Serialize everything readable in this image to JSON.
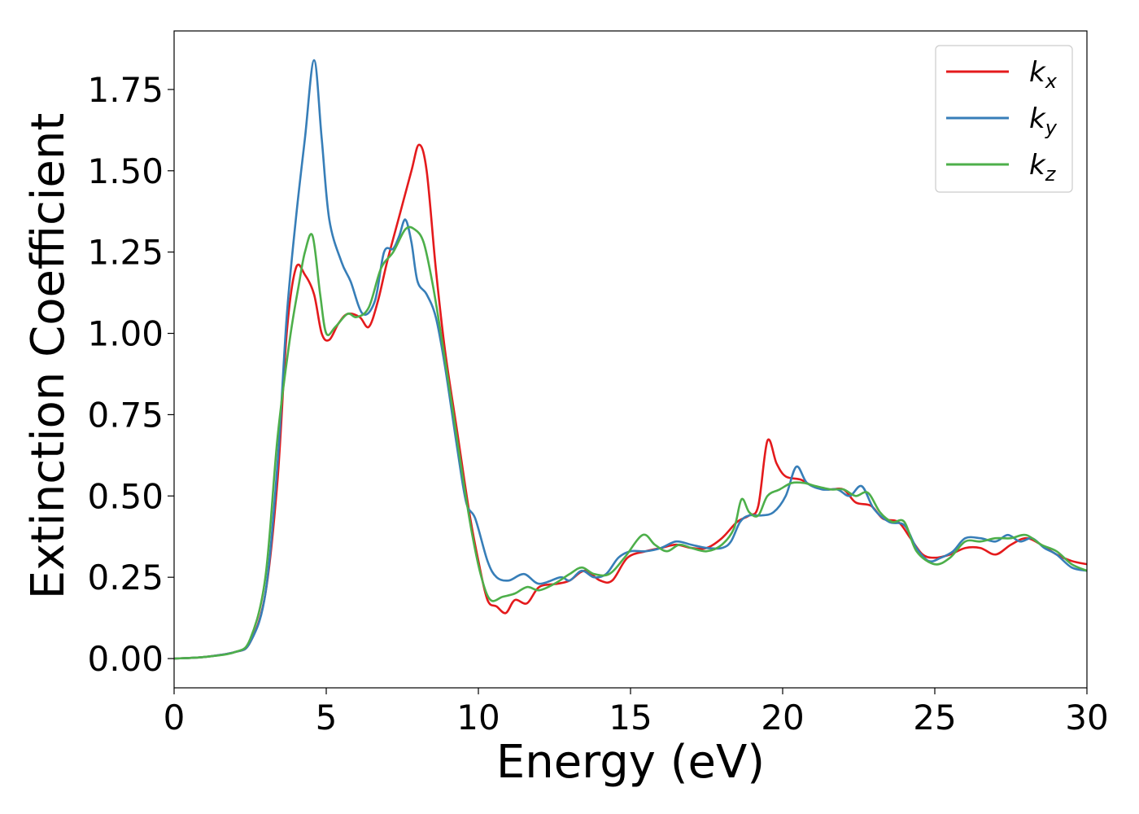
{
  "chart_data": {
    "type": "line",
    "xlabel": "Energy (eV)",
    "ylabel": "Extinction Coefficient",
    "xlim": [
      0,
      30
    ],
    "ylim": [
      -0.09,
      1.93
    ],
    "xticks": [
      0,
      5,
      10,
      15,
      20,
      25,
      30
    ],
    "yticks": [
      0.0,
      0.25,
      0.5,
      0.75,
      1.0,
      1.25,
      1.5,
      1.75
    ],
    "xtick_labels": [
      "0",
      "5",
      "10",
      "15",
      "20",
      "25",
      "30"
    ],
    "ytick_labels": [
      "0.00",
      "0.25",
      "0.50",
      "0.75",
      "1.00",
      "1.25",
      "1.50",
      "1.75"
    ],
    "grid": false,
    "legend_position": "top-right",
    "series": [
      {
        "name": "kx",
        "base": "k",
        "sub": "x",
        "color": "#e41a1c",
        "points": [
          [
            0,
            0
          ],
          [
            1,
            0.005
          ],
          [
            2,
            0.02
          ],
          [
            2.5,
            0.05
          ],
          [
            3,
            0.2
          ],
          [
            3.4,
            0.55
          ],
          [
            3.7,
            1.0
          ],
          [
            4.0,
            1.2
          ],
          [
            4.3,
            1.18
          ],
          [
            4.6,
            1.12
          ],
          [
            4.85,
            1.0
          ],
          [
            5.1,
            0.98
          ],
          [
            5.4,
            1.03
          ],
          [
            5.7,
            1.06
          ],
          [
            6.1,
            1.05
          ],
          [
            6.4,
            1.02
          ],
          [
            6.7,
            1.1
          ],
          [
            7.0,
            1.22
          ],
          [
            7.4,
            1.36
          ],
          [
            7.8,
            1.5
          ],
          [
            8.05,
            1.58
          ],
          [
            8.3,
            1.5
          ],
          [
            8.6,
            1.2
          ],
          [
            8.9,
            0.95
          ],
          [
            9.3,
            0.7
          ],
          [
            9.7,
            0.45
          ],
          [
            10.0,
            0.3
          ],
          [
            10.3,
            0.18
          ],
          [
            10.6,
            0.16
          ],
          [
            10.9,
            0.14
          ],
          [
            11.2,
            0.18
          ],
          [
            11.6,
            0.17
          ],
          [
            12.0,
            0.22
          ],
          [
            12.6,
            0.23
          ],
          [
            13.0,
            0.24
          ],
          [
            13.5,
            0.27
          ],
          [
            14.0,
            0.24
          ],
          [
            14.4,
            0.24
          ],
          [
            14.9,
            0.31
          ],
          [
            15.5,
            0.33
          ],
          [
            16.0,
            0.34
          ],
          [
            16.5,
            0.35
          ],
          [
            17.0,
            0.34
          ],
          [
            17.5,
            0.34
          ],
          [
            18.0,
            0.37
          ],
          [
            18.5,
            0.42
          ],
          [
            18.9,
            0.44
          ],
          [
            19.2,
            0.47
          ],
          [
            19.5,
            0.67
          ],
          [
            19.8,
            0.6
          ],
          [
            20.1,
            0.56
          ],
          [
            20.6,
            0.55
          ],
          [
            21.0,
            0.53
          ],
          [
            21.5,
            0.52
          ],
          [
            22.0,
            0.52
          ],
          [
            22.4,
            0.48
          ],
          [
            22.9,
            0.47
          ],
          [
            23.3,
            0.43
          ],
          [
            23.8,
            0.42
          ],
          [
            24.2,
            0.37
          ],
          [
            24.6,
            0.32
          ],
          [
            25.0,
            0.31
          ],
          [
            25.5,
            0.32
          ],
          [
            26.0,
            0.34
          ],
          [
            26.5,
            0.34
          ],
          [
            27.0,
            0.32
          ],
          [
            27.5,
            0.35
          ],
          [
            28.0,
            0.37
          ],
          [
            28.5,
            0.35
          ],
          [
            29.0,
            0.32
          ],
          [
            29.5,
            0.3
          ],
          [
            30.0,
            0.29
          ]
        ]
      },
      {
        "name": "ky",
        "base": "k",
        "sub": "y",
        "color": "#377eb8",
        "points": [
          [
            0,
            0
          ],
          [
            1,
            0.005
          ],
          [
            2,
            0.02
          ],
          [
            2.5,
            0.05
          ],
          [
            3,
            0.2
          ],
          [
            3.4,
            0.6
          ],
          [
            3.7,
            1.05
          ],
          [
            4.0,
            1.35
          ],
          [
            4.3,
            1.6
          ],
          [
            4.6,
            1.84
          ],
          [
            4.85,
            1.6
          ],
          [
            5.1,
            1.35
          ],
          [
            5.5,
            1.22
          ],
          [
            5.8,
            1.16
          ],
          [
            6.2,
            1.06
          ],
          [
            6.6,
            1.1
          ],
          [
            6.9,
            1.25
          ],
          [
            7.2,
            1.26
          ],
          [
            7.4,
            1.3
          ],
          [
            7.6,
            1.35
          ],
          [
            7.8,
            1.28
          ],
          [
            8.0,
            1.16
          ],
          [
            8.3,
            1.12
          ],
          [
            8.6,
            1.05
          ],
          [
            8.9,
            0.9
          ],
          [
            9.3,
            0.65
          ],
          [
            9.6,
            0.48
          ],
          [
            9.9,
            0.43
          ],
          [
            10.3,
            0.3
          ],
          [
            10.6,
            0.25
          ],
          [
            11.0,
            0.24
          ],
          [
            11.5,
            0.26
          ],
          [
            12.0,
            0.23
          ],
          [
            12.7,
            0.25
          ],
          [
            13.0,
            0.24
          ],
          [
            13.4,
            0.27
          ],
          [
            13.8,
            0.25
          ],
          [
            14.2,
            0.26
          ],
          [
            14.6,
            0.31
          ],
          [
            15.0,
            0.33
          ],
          [
            15.5,
            0.33
          ],
          [
            16.0,
            0.34
          ],
          [
            16.5,
            0.36
          ],
          [
            17.0,
            0.35
          ],
          [
            17.5,
            0.34
          ],
          [
            18.0,
            0.34
          ],
          [
            18.3,
            0.36
          ],
          [
            18.6,
            0.42
          ],
          [
            18.9,
            0.44
          ],
          [
            19.3,
            0.44
          ],
          [
            19.7,
            0.45
          ],
          [
            20.1,
            0.5
          ],
          [
            20.45,
            0.59
          ],
          [
            20.8,
            0.54
          ],
          [
            21.3,
            0.52
          ],
          [
            21.8,
            0.52
          ],
          [
            22.2,
            0.5
          ],
          [
            22.6,
            0.53
          ],
          [
            23.0,
            0.46
          ],
          [
            23.5,
            0.42
          ],
          [
            24.0,
            0.41
          ],
          [
            24.4,
            0.34
          ],
          [
            24.8,
            0.3
          ],
          [
            25.2,
            0.31
          ],
          [
            25.6,
            0.33
          ],
          [
            26.0,
            0.37
          ],
          [
            26.5,
            0.37
          ],
          [
            27.0,
            0.36
          ],
          [
            27.4,
            0.38
          ],
          [
            27.8,
            0.36
          ],
          [
            28.2,
            0.37
          ],
          [
            28.6,
            0.34
          ],
          [
            29.0,
            0.32
          ],
          [
            29.5,
            0.28
          ],
          [
            30.0,
            0.27
          ]
        ]
      },
      {
        "name": "kz",
        "base": "k",
        "sub": "z",
        "color": "#4daf4a",
        "points": [
          [
            0,
            0
          ],
          [
            1,
            0.005
          ],
          [
            2,
            0.02
          ],
          [
            2.5,
            0.06
          ],
          [
            3,
            0.25
          ],
          [
            3.4,
            0.68
          ],
          [
            3.8,
            0.98
          ],
          [
            4.1,
            1.15
          ],
          [
            4.3,
            1.25
          ],
          [
            4.55,
            1.3
          ],
          [
            4.8,
            1.12
          ],
          [
            5.0,
            1.0
          ],
          [
            5.3,
            1.02
          ],
          [
            5.7,
            1.06
          ],
          [
            6.0,
            1.05
          ],
          [
            6.4,
            1.08
          ],
          [
            6.8,
            1.2
          ],
          [
            7.2,
            1.25
          ],
          [
            7.6,
            1.32
          ],
          [
            7.9,
            1.32
          ],
          [
            8.2,
            1.28
          ],
          [
            8.5,
            1.15
          ],
          [
            8.8,
            0.98
          ],
          [
            9.1,
            0.8
          ],
          [
            9.5,
            0.55
          ],
          [
            9.8,
            0.38
          ],
          [
            10.1,
            0.25
          ],
          [
            10.4,
            0.18
          ],
          [
            10.8,
            0.19
          ],
          [
            11.2,
            0.2
          ],
          [
            11.6,
            0.22
          ],
          [
            12.0,
            0.21
          ],
          [
            12.5,
            0.23
          ],
          [
            13.0,
            0.26
          ],
          [
            13.4,
            0.28
          ],
          [
            13.8,
            0.26
          ],
          [
            14.3,
            0.26
          ],
          [
            14.8,
            0.31
          ],
          [
            15.4,
            0.38
          ],
          [
            15.8,
            0.35
          ],
          [
            16.2,
            0.33
          ],
          [
            16.6,
            0.35
          ],
          [
            17.0,
            0.34
          ],
          [
            17.5,
            0.33
          ],
          [
            18.0,
            0.35
          ],
          [
            18.4,
            0.4
          ],
          [
            18.65,
            0.49
          ],
          [
            18.9,
            0.45
          ],
          [
            19.2,
            0.44
          ],
          [
            19.5,
            0.5
          ],
          [
            19.9,
            0.52
          ],
          [
            20.3,
            0.54
          ],
          [
            20.7,
            0.54
          ],
          [
            21.1,
            0.53
          ],
          [
            21.6,
            0.52
          ],
          [
            22.0,
            0.52
          ],
          [
            22.4,
            0.5
          ],
          [
            22.8,
            0.51
          ],
          [
            23.2,
            0.45
          ],
          [
            23.6,
            0.42
          ],
          [
            24.0,
            0.42
          ],
          [
            24.4,
            0.33
          ],
          [
            25.0,
            0.29
          ],
          [
            25.5,
            0.31
          ],
          [
            26.0,
            0.36
          ],
          [
            26.5,
            0.36
          ],
          [
            27.0,
            0.37
          ],
          [
            27.5,
            0.37
          ],
          [
            28.0,
            0.38
          ],
          [
            28.5,
            0.35
          ],
          [
            29.0,
            0.33
          ],
          [
            29.5,
            0.29
          ],
          [
            30.0,
            0.27
          ]
        ]
      }
    ]
  }
}
